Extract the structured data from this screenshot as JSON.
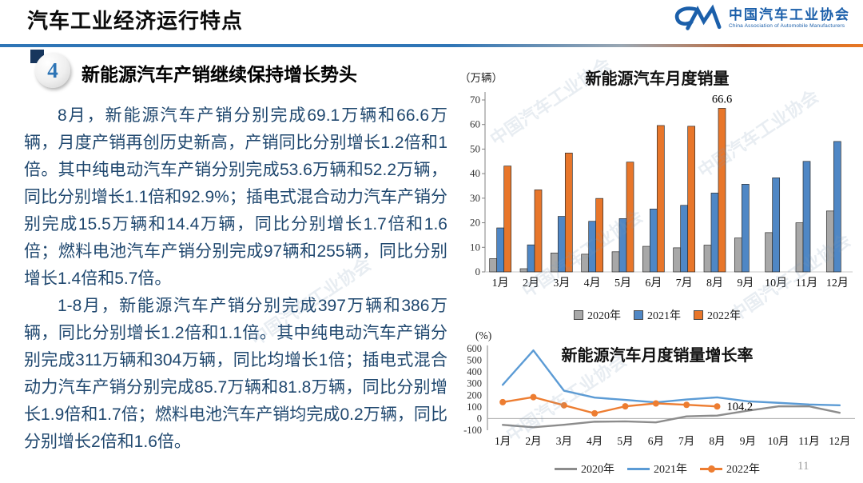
{
  "header": {
    "title": "汽车工业经济运行特点",
    "logo": {
      "org_cn": "中国汽车工业协会",
      "org_en": "China Association of Automobile Manufacturers"
    }
  },
  "section": {
    "number": "4",
    "heading": "新能源汽车产销继续保持增长势头"
  },
  "body": {
    "paragraph1": "8月，新能源汽车产销分别完成69.1万辆和66.6万辆，月度产销再创历史新高，产销同比分别增长1.2倍和1倍。其中纯电动汽车产销分别完成53.6万辆和52.2万辆，同比分别增长1.1倍和92.9%；插电式混合动力汽车产销分别完成15.5万辆和14.4万辆，同比分别增长1.7倍和1.6倍；燃料电池汽车产销分别完成97辆和255辆，同比分别增长1.4倍和5.7倍。",
    "paragraph2": "1-8月，新能源汽车产销分别完成397万辆和386万辆，同比分别增长1.2倍和1.1倍。其中纯电动汽车产销分别完成311万辆和304万辆，同比均增长1倍；插电式混合动力汽车产销分别完成85.7万辆和81.8万辆，同比分别增长1.9倍和1.7倍；燃料电池汽车产销均完成0.2万辆，同比分别增长2倍和1.6倍。"
  },
  "watermark": {
    "text": "中国汽车工业协会"
  },
  "page_number": "11",
  "colors": {
    "accent_blue": "#2E75B6",
    "body_text_blue": "#20486F",
    "logo_blue": "#1B5FAA"
  },
  "chart_data": [
    {
      "type": "bar",
      "title": "新能源汽车月度销量",
      "unit_label": "（万辆）",
      "categories": [
        "1月",
        "2月",
        "3月",
        "4月",
        "5月",
        "6月",
        "7月",
        "8月",
        "9月",
        "10月",
        "11月",
        "12月"
      ],
      "series": [
        {
          "name": "2020年",
          "color": "#A8A8A8",
          "values": [
            5.4,
            1.3,
            7.7,
            7.2,
            8.2,
            10.4,
            9.8,
            10.9,
            13.8,
            16.0,
            20.0,
            24.8
          ]
        },
        {
          "name": "2021年",
          "color": "#4F87C5",
          "values": [
            17.9,
            11.0,
            22.6,
            20.6,
            21.7,
            25.6,
            27.1,
            32.1,
            35.7,
            38.3,
            45.0,
            53.1
          ]
        },
        {
          "name": "2022年",
          "color": "#E8762A",
          "values": [
            43.1,
            33.4,
            48.4,
            29.9,
            44.7,
            59.6,
            59.3,
            66.6,
            null,
            null,
            null,
            null
          ]
        }
      ],
      "ylim": [
        0,
        70
      ],
      "ytick_step": 10,
      "grid": false,
      "legend_position": "bottom",
      "annotation": {
        "series_index": 2,
        "point_index": 7,
        "text": "66.6"
      }
    },
    {
      "type": "line",
      "title": "新能源汽车月度销量增长率",
      "unit_label": "(%)",
      "categories": [
        "1月",
        "2月",
        "3月",
        "4月",
        "5月",
        "6月",
        "7月",
        "8月",
        "9月",
        "10月",
        "11月",
        "12月"
      ],
      "series": [
        {
          "name": "2020年",
          "color": "#8C8C8C",
          "marker": "none",
          "values": [
            -54,
            -75,
            -53,
            -27,
            -24,
            -33,
            19,
            26,
            68,
            105,
            105,
            50
          ]
        },
        {
          "name": "2021年",
          "color": "#5B9BD5",
          "marker": "none",
          "values": [
            290,
            585,
            239,
            180,
            160,
            139,
            164,
            182,
            148,
            135,
            121,
            114
          ]
        },
        {
          "name": "2022年",
          "color": "#ED7D31",
          "marker": "circle",
          "values": [
            141,
            184,
            114,
            45,
            105,
            130,
            118,
            104.2,
            null,
            null,
            null,
            null
          ]
        }
      ],
      "ylim": [
        -100,
        600
      ],
      "ytick_step": 100,
      "grid": false,
      "legend_position": "bottom",
      "annotation": {
        "series_index": 2,
        "point_index": 7,
        "text": "104.2"
      }
    }
  ]
}
